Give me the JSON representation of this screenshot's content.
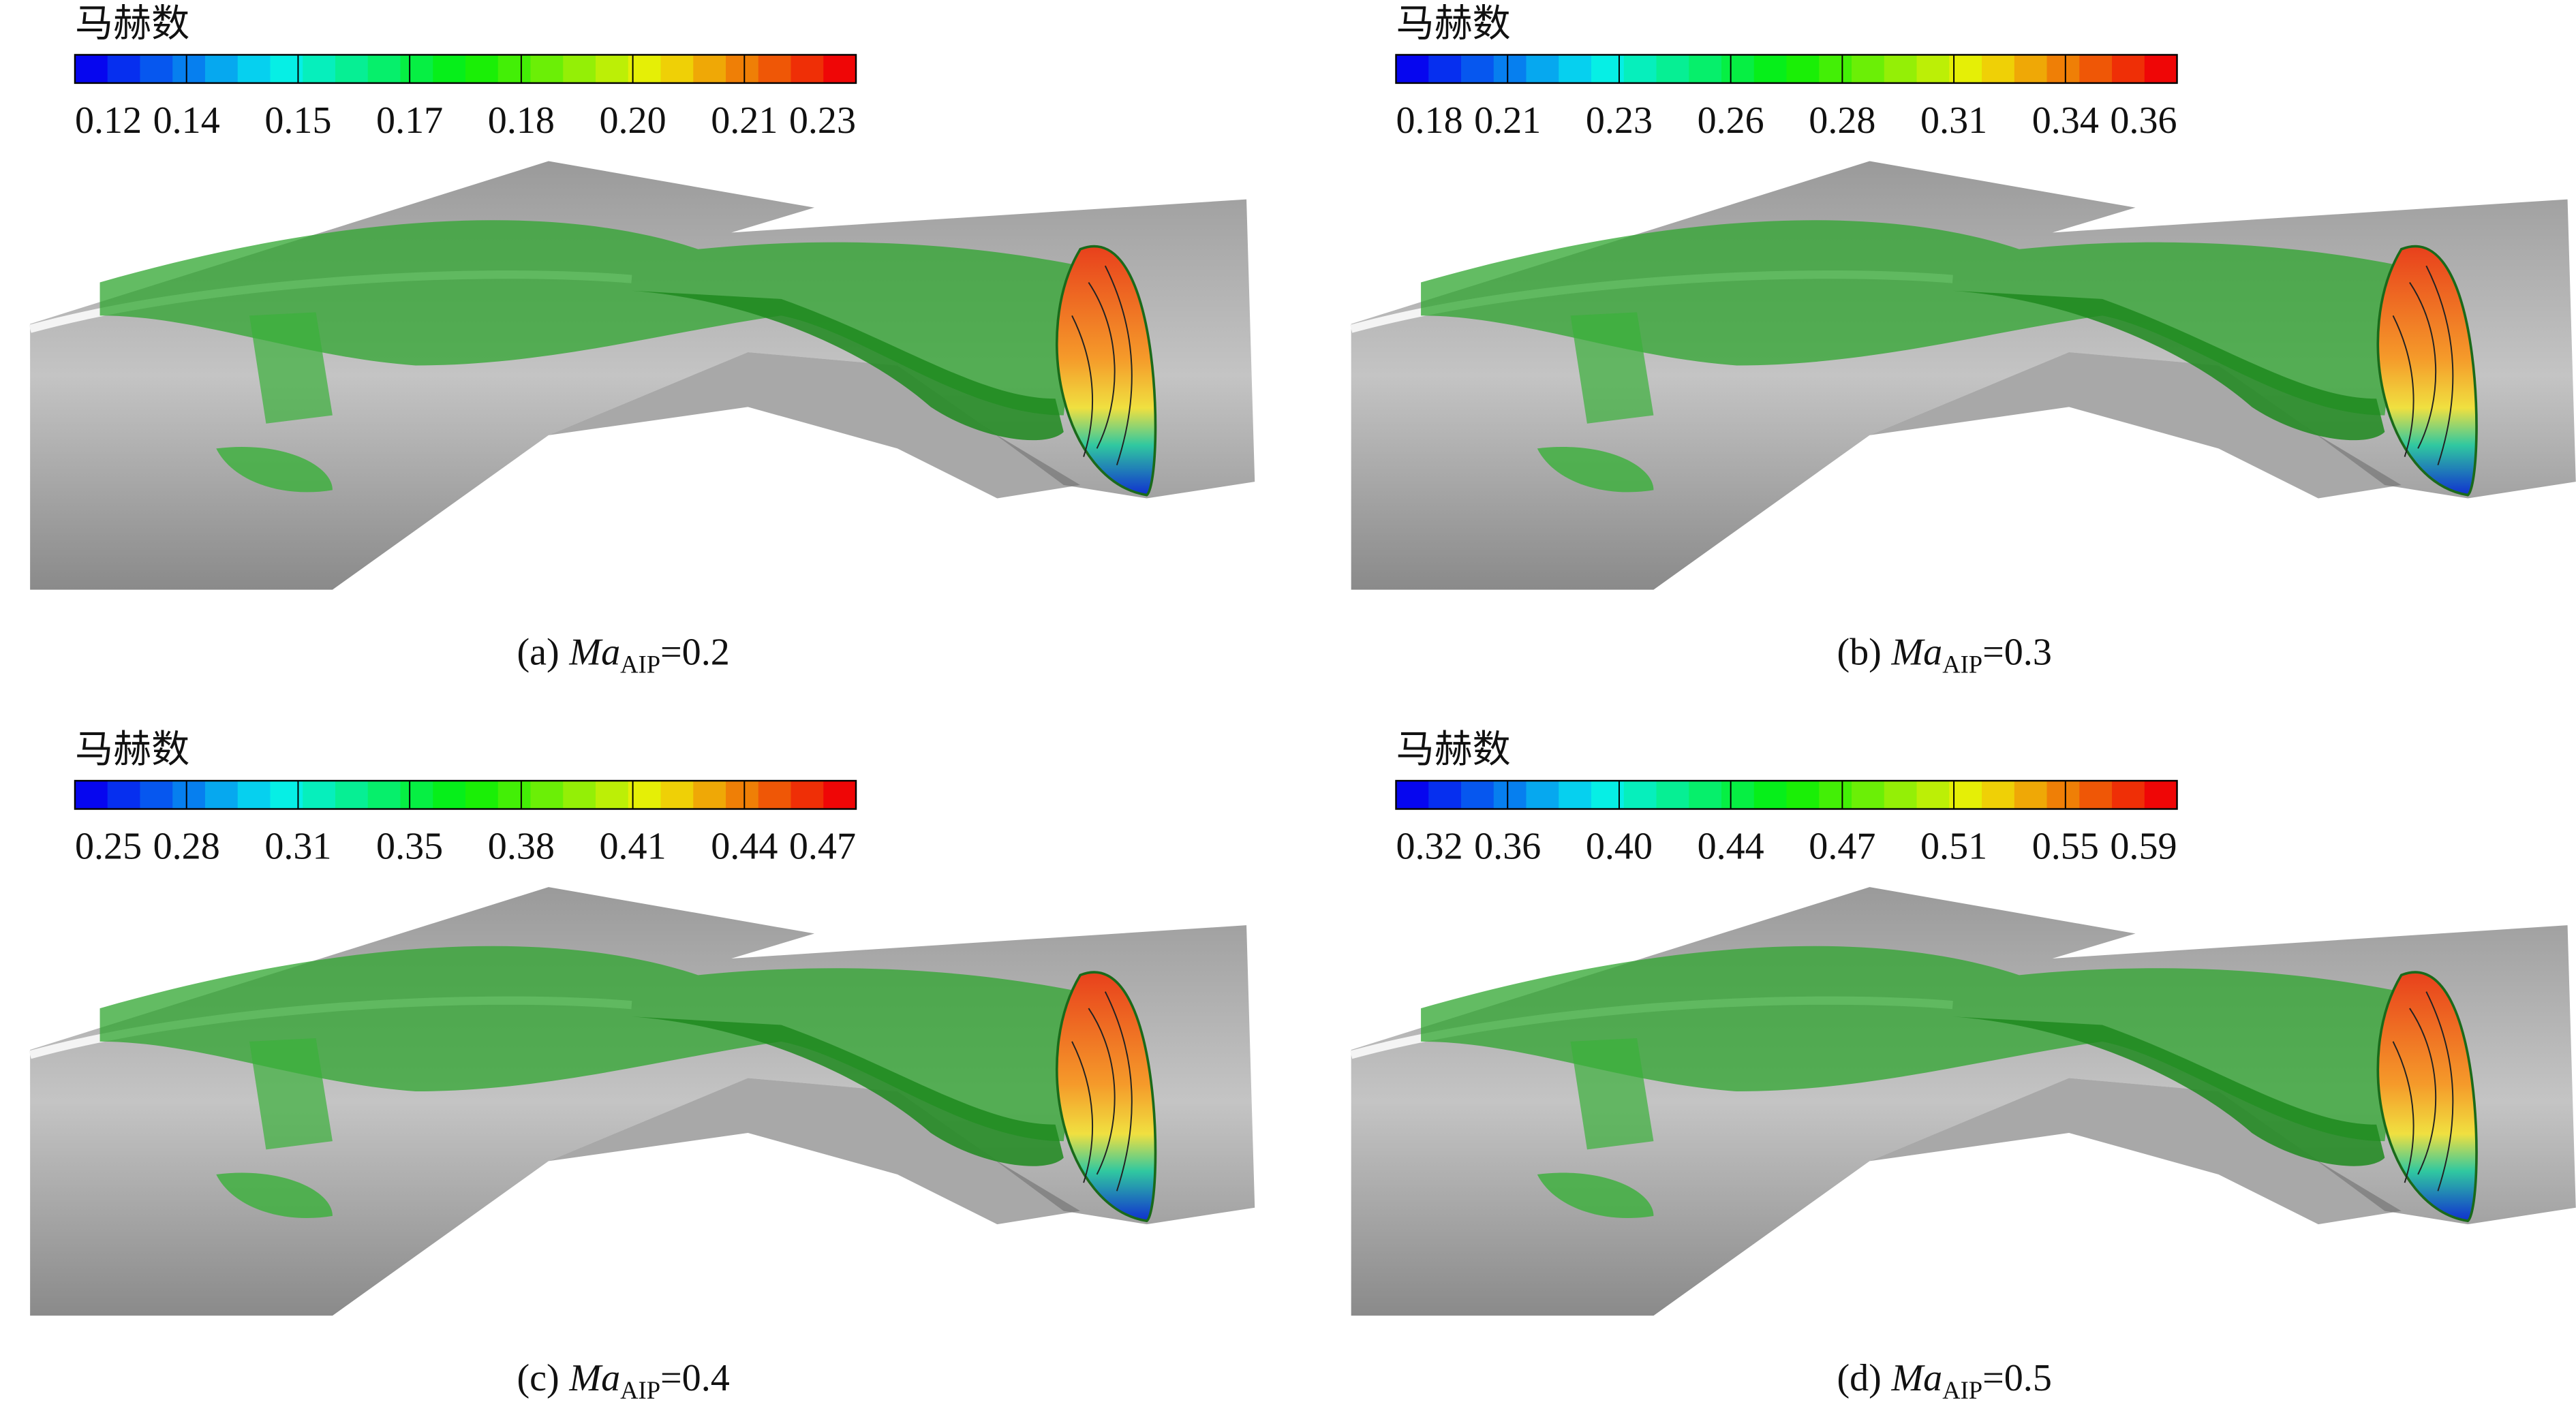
{
  "panels": [
    {
      "colorbar_title": "马赫数",
      "ticks": [
        "0.12",
        "0.14",
        "0.15",
        "0.17",
        "0.18",
        "0.20",
        "0.21",
        "0.23"
      ],
      "caption": {
        "label": "(a)",
        "symbol": "Ma",
        "subscript": "AIP",
        "value": "=0.2"
      }
    },
    {
      "colorbar_title": "马赫数",
      "ticks": [
        "0.18",
        "0.21",
        "0.23",
        "0.26",
        "0.28",
        "0.31",
        "0.34",
        "0.36"
      ],
      "caption": {
        "label": "(b)",
        "symbol": "Ma",
        "subscript": "AIP",
        "value": "=0.3"
      }
    },
    {
      "colorbar_title": "马赫数",
      "ticks": [
        "0.25",
        "0.28",
        "0.31",
        "0.35",
        "0.38",
        "0.41",
        "0.44",
        "0.47"
      ],
      "caption": {
        "label": "(c)",
        "symbol": "Ma",
        "subscript": "AIP",
        "value": "=0.4"
      }
    },
    {
      "colorbar_title": "马赫数",
      "ticks": [
        "0.32",
        "0.36",
        "0.40",
        "0.44",
        "0.47",
        "0.51",
        "0.55",
        "0.59"
      ],
      "caption": {
        "label": "(d)",
        "symbol": "Ma",
        "subscript": "AIP",
        "value": "=0.5"
      }
    }
  ]
}
